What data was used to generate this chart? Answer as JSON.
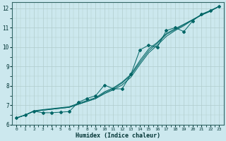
{
  "xlabel": "Humidex (Indice chaleur)",
  "bg_color": "#cce8ee",
  "grid_color": "#b0cccc",
  "line_color": "#006666",
  "xlim": [
    -0.5,
    23.5
  ],
  "ylim": [
    6.0,
    12.3
  ],
  "yticks": [
    6,
    7,
    8,
    9,
    10,
    11,
    12
  ],
  "xticks": [
    0,
    1,
    2,
    3,
    4,
    5,
    6,
    7,
    8,
    9,
    10,
    11,
    12,
    13,
    14,
    15,
    16,
    17,
    18,
    19,
    20,
    21,
    22,
    23
  ],
  "smooth1_x": [
    0,
    1,
    2,
    3,
    4,
    5,
    6,
    7,
    8,
    9,
    10,
    11,
    12,
    13,
    14,
    15,
    16,
    17,
    18,
    19,
    20,
    21,
    22,
    23
  ],
  "smooth1_y": [
    6.35,
    6.5,
    6.7,
    6.75,
    6.8,
    6.85,
    6.9,
    7.05,
    7.2,
    7.35,
    7.6,
    7.8,
    8.05,
    8.45,
    9.1,
    9.7,
    10.1,
    10.55,
    10.85,
    11.1,
    11.4,
    11.65,
    11.85,
    12.1
  ],
  "smooth2_x": [
    0,
    1,
    2,
    3,
    4,
    5,
    6,
    7,
    8,
    9,
    10,
    11,
    12,
    13,
    14,
    15,
    16,
    17,
    18,
    19,
    20,
    21,
    22,
    23
  ],
  "smooth2_y": [
    6.35,
    6.5,
    6.7,
    6.75,
    6.8,
    6.85,
    6.9,
    7.05,
    7.2,
    7.35,
    7.65,
    7.85,
    8.15,
    8.55,
    9.2,
    9.8,
    10.2,
    10.65,
    10.9,
    11.15,
    11.4,
    11.65,
    11.85,
    12.1
  ],
  "smooth3_x": [
    0,
    1,
    2,
    3,
    4,
    5,
    6,
    7,
    8,
    9,
    10,
    11,
    12,
    13,
    14,
    15,
    16,
    17,
    18,
    19,
    20,
    21,
    22,
    23
  ],
  "smooth3_y": [
    6.35,
    6.5,
    6.72,
    6.78,
    6.83,
    6.88,
    6.93,
    7.1,
    7.25,
    7.4,
    7.7,
    7.9,
    8.2,
    8.6,
    9.3,
    9.9,
    10.25,
    10.7,
    10.95,
    11.18,
    11.42,
    11.67,
    11.88,
    12.1
  ],
  "marker_x": [
    0,
    1,
    2,
    3,
    4,
    5,
    6,
    7,
    8,
    9,
    10,
    11,
    12,
    13,
    14,
    15,
    16,
    17,
    18,
    19,
    20,
    21,
    22,
    23
  ],
  "marker_y": [
    6.35,
    6.5,
    6.7,
    6.62,
    6.62,
    6.65,
    6.68,
    7.15,
    7.35,
    7.5,
    8.05,
    7.85,
    7.85,
    8.6,
    9.85,
    10.1,
    10.0,
    10.85,
    11.0,
    10.8,
    11.35,
    11.7,
    11.88,
    12.1
  ]
}
